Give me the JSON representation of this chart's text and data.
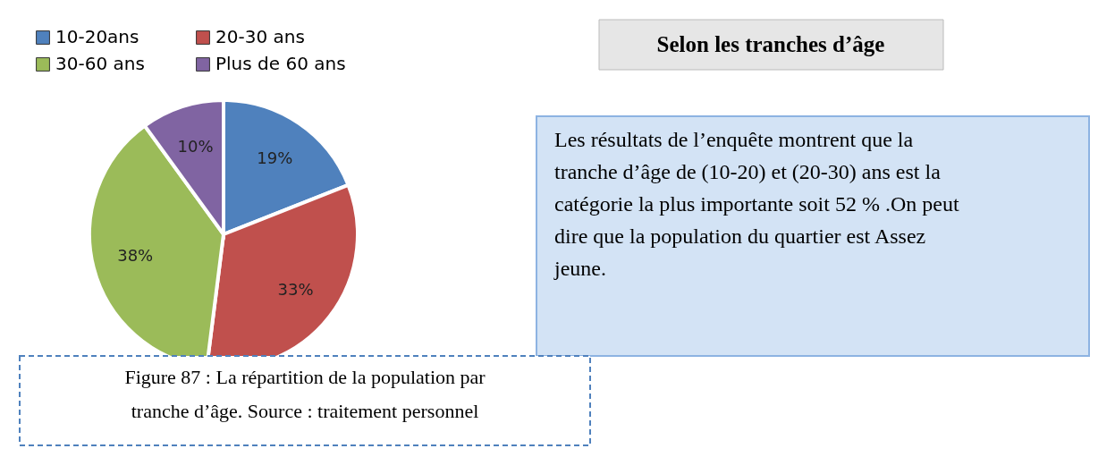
{
  "chart_data": {
    "type": "pie",
    "title": "Selon les tranches d’âge",
    "categories": [
      "10-20ans",
      "20-30 ans",
      "30-60 ans",
      "Plus de 60 ans"
    ],
    "values": [
      19,
      33,
      38,
      10
    ],
    "colors": [
      "#4f81bd",
      "#c0504d",
      "#9bbb59",
      "#8064a2"
    ],
    "value_labels": [
      "19%",
      "33%",
      "38%",
      "10%"
    ],
    "legend": "top left",
    "annotations": [
      "Les résultats de l’enquête montrent que la tranche d’âge de (10-20) et (20-30) ans est la catégorie la plus importante soit 52 % .On peut dire que la population du quartier est Assez jeune.",
      "Figure 87 : La répartition de la population par tranche d’âge. Source : traitement personnel"
    ]
  }
}
